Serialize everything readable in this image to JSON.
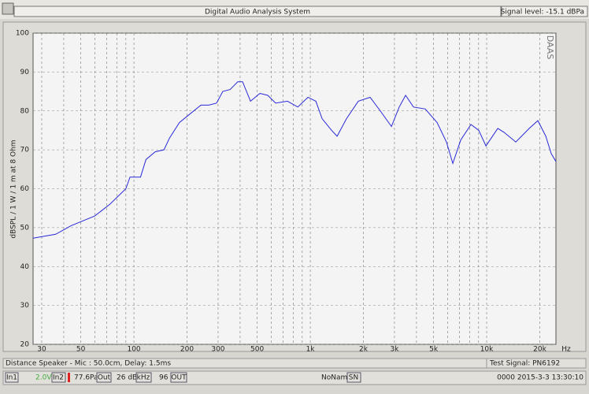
{
  "window": {
    "title": "Digital Audio Analysis System",
    "signal_level": "Signal level: -15.1 dBPa"
  },
  "chart_data": {
    "type": "line",
    "y_label": "dBSPL / 1 W / 1 m at 8 Ohm",
    "watermark": "DAAS",
    "x_unit": "Hz",
    "log_x": true,
    "grid": true,
    "color": "#2a2ad8",
    "xlim": [
      26.8,
      24700
    ],
    "ylim": [
      20,
      100
    ],
    "yticks": [
      20,
      30,
      40,
      50,
      60,
      70,
      80,
      90,
      100
    ],
    "xticks": [
      30,
      50,
      100,
      200,
      300,
      500,
      {
        "value": 1000,
        "label": "1k"
      },
      {
        "value": 2000,
        "label": "2k"
      },
      {
        "value": 3000,
        "label": "3k"
      },
      {
        "value": 5000,
        "label": "5k"
      },
      {
        "value": 10000,
        "label": "10k"
      },
      {
        "value": 20000,
        "label": "20k"
      }
    ],
    "xgrid": [
      30,
      40,
      50,
      60,
      70,
      80,
      90,
      100,
      200,
      300,
      400,
      500,
      600,
      700,
      800,
      900,
      1000,
      2000,
      3000,
      4000,
      5000,
      6000,
      7000,
      8000,
      9000,
      10000,
      20000
    ],
    "x": [
      26.8,
      36,
      44,
      60,
      73,
      90,
      95,
      109,
      117,
      132,
      148,
      159,
      181,
      205,
      240,
      266,
      294,
      319,
      351,
      388,
      413,
      458,
      518,
      574,
      636,
      742,
      849,
      970,
      1075,
      1167,
      1321,
      1419,
      1604,
      1871,
      2183,
      2495,
      2884,
      3193,
      3470,
      3846,
      4487,
      5236,
      5916,
      6427,
      7125,
      8147,
      9021,
      9906,
      11560,
      12540,
      14630,
      17420,
      19510,
      21640,
      23240,
      24700
    ],
    "values": [
      47.3,
      48.3,
      50.5,
      53,
      56,
      60,
      63,
      63,
      67.5,
      69.5,
      70,
      73,
      77,
      79,
      81.5,
      81.5,
      82,
      85,
      85.5,
      87.5,
      87.5,
      82.5,
      84.5,
      84,
      82,
      82.5,
      81,
      83.5,
      82.5,
      78,
      75,
      73.5,
      78,
      82.5,
      83.5,
      80,
      76,
      81,
      84,
      81,
      80.5,
      77,
      72,
      66.5,
      72.5,
      76.5,
      75,
      71,
      75.5,
      74.5,
      72,
      75.5,
      77.5,
      73.5,
      69,
      67
    ]
  },
  "status": {
    "distance": "Distance Speaker - Mic : 50.0cm, Delay: 1.5ms",
    "test_signal": "Test Signal: PN6192",
    "in1": "In1",
    "voltage": "2.0V",
    "in2": "In2",
    "pressure": "77.6Pa",
    "out": "Out",
    "gain": "26 dB",
    "khz": "kHz",
    "rate": "96",
    "out2": "OUT",
    "name": "NoName",
    "sn": "SN",
    "timestamp": "0000 2015-3-3 13:30:10"
  }
}
